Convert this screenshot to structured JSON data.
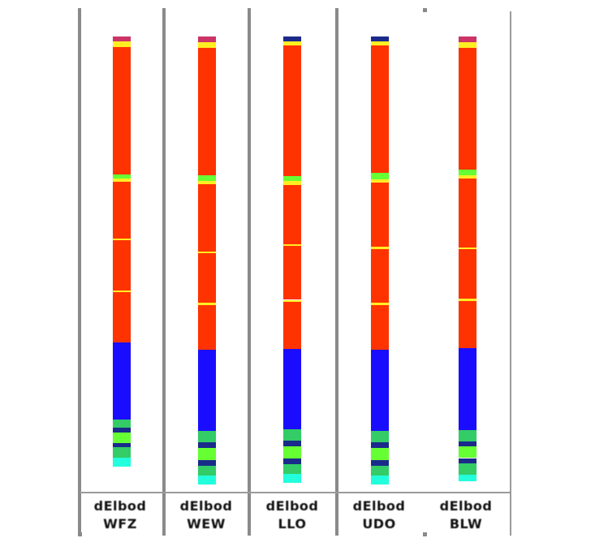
{
  "figure": {
    "colors": {
      "dominant": "#ff3300",
      "block": "#1a0dff",
      "transition": "#66ff33",
      "yellow": "#ffee22",
      "cyan": "#22ffdd",
      "green": "#33cc66",
      "navy": "#1a2a8a",
      "magenta": "#cc3366",
      "divider": "#8a8a8a"
    },
    "columns": [
      {
        "label_line1": "dElbod",
        "label_line2": "WFZ",
        "segments": [
          {
            "from": 0.0,
            "to": 0.012,
            "color": "magenta"
          },
          {
            "from": 0.012,
            "to": 0.024,
            "color": "yellow"
          },
          {
            "from": 0.024,
            "to": 0.32,
            "color": "dominant"
          },
          {
            "from": 0.32,
            "to": 0.33,
            "color": "transition"
          },
          {
            "from": 0.33,
            "to": 0.338,
            "color": "yellow"
          },
          {
            "from": 0.338,
            "to": 0.47,
            "color": "dominant"
          },
          {
            "from": 0.47,
            "to": 0.474,
            "color": "yellow"
          },
          {
            "from": 0.474,
            "to": 0.59,
            "color": "dominant"
          },
          {
            "from": 0.59,
            "to": 0.594,
            "color": "yellow"
          },
          {
            "from": 0.594,
            "to": 0.712,
            "color": "dominant"
          },
          {
            "from": 0.712,
            "to": 0.89,
            "color": "block"
          },
          {
            "from": 0.89,
            "to": 0.91,
            "color": "green"
          },
          {
            "from": 0.91,
            "to": 0.92,
            "color": "navy"
          },
          {
            "from": 0.92,
            "to": 0.945,
            "color": "transition"
          },
          {
            "from": 0.945,
            "to": 0.955,
            "color": "navy"
          },
          {
            "from": 0.955,
            "to": 0.98,
            "color": "green"
          },
          {
            "from": 0.98,
            "to": 1.0,
            "color": "cyan"
          }
        ]
      },
      {
        "label_line1": "dElbod",
        "label_line2": "WEW",
        "segments": [
          {
            "from": 0.0,
            "to": 0.012,
            "color": "magenta"
          },
          {
            "from": 0.012,
            "to": 0.026,
            "color": "yellow"
          },
          {
            "from": 0.026,
            "to": 0.31,
            "color": "dominant"
          },
          {
            "from": 0.31,
            "to": 0.322,
            "color": "transition"
          },
          {
            "from": 0.322,
            "to": 0.33,
            "color": "yellow"
          },
          {
            "from": 0.33,
            "to": 0.48,
            "color": "dominant"
          },
          {
            "from": 0.48,
            "to": 0.484,
            "color": "yellow"
          },
          {
            "from": 0.484,
            "to": 0.595,
            "color": "dominant"
          },
          {
            "from": 0.595,
            "to": 0.6,
            "color": "yellow"
          },
          {
            "from": 0.6,
            "to": 0.7,
            "color": "dominant"
          },
          {
            "from": 0.7,
            "to": 0.88,
            "color": "block"
          },
          {
            "from": 0.88,
            "to": 0.905,
            "color": "green"
          },
          {
            "from": 0.905,
            "to": 0.918,
            "color": "navy"
          },
          {
            "from": 0.918,
            "to": 0.945,
            "color": "transition"
          },
          {
            "from": 0.945,
            "to": 0.958,
            "color": "navy"
          },
          {
            "from": 0.958,
            "to": 0.98,
            "color": "green"
          },
          {
            "from": 0.98,
            "to": 1.0,
            "color": "cyan"
          }
        ]
      },
      {
        "label_line1": "dElbod",
        "label_line2": "LLO",
        "segments": [
          {
            "from": 0.0,
            "to": 0.01,
            "color": "navy"
          },
          {
            "from": 0.01,
            "to": 0.02,
            "color": "yellow"
          },
          {
            "from": 0.02,
            "to": 0.312,
            "color": "dominant"
          },
          {
            "from": 0.312,
            "to": 0.324,
            "color": "transition"
          },
          {
            "from": 0.324,
            "to": 0.332,
            "color": "yellow"
          },
          {
            "from": 0.332,
            "to": 0.465,
            "color": "dominant"
          },
          {
            "from": 0.465,
            "to": 0.469,
            "color": "yellow"
          },
          {
            "from": 0.469,
            "to": 0.59,
            "color": "dominant"
          },
          {
            "from": 0.59,
            "to": 0.594,
            "color": "yellow"
          },
          {
            "from": 0.594,
            "to": 0.7,
            "color": "dominant"
          },
          {
            "from": 0.7,
            "to": 0.88,
            "color": "block"
          },
          {
            "from": 0.88,
            "to": 0.905,
            "color": "green"
          },
          {
            "from": 0.905,
            "to": 0.918,
            "color": "navy"
          },
          {
            "from": 0.918,
            "to": 0.945,
            "color": "transition"
          },
          {
            "from": 0.945,
            "to": 0.958,
            "color": "navy"
          },
          {
            "from": 0.958,
            "to": 0.98,
            "color": "green"
          },
          {
            "from": 0.98,
            "to": 1.0,
            "color": "cyan"
          }
        ]
      },
      {
        "label_line1": "dElbod",
        "label_line2": "UDO",
        "segments": [
          {
            "from": 0.0,
            "to": 0.01,
            "color": "navy"
          },
          {
            "from": 0.01,
            "to": 0.02,
            "color": "yellow"
          },
          {
            "from": 0.02,
            "to": 0.305,
            "color": "dominant"
          },
          {
            "from": 0.305,
            "to": 0.318,
            "color": "transition"
          },
          {
            "from": 0.318,
            "to": 0.326,
            "color": "yellow"
          },
          {
            "from": 0.326,
            "to": 0.47,
            "color": "dominant"
          },
          {
            "from": 0.47,
            "to": 0.474,
            "color": "yellow"
          },
          {
            "from": 0.474,
            "to": 0.595,
            "color": "dominant"
          },
          {
            "from": 0.595,
            "to": 0.599,
            "color": "yellow"
          },
          {
            "from": 0.599,
            "to": 0.7,
            "color": "dominant"
          },
          {
            "from": 0.7,
            "to": 0.88,
            "color": "block"
          },
          {
            "from": 0.88,
            "to": 0.905,
            "color": "green"
          },
          {
            "from": 0.905,
            "to": 0.918,
            "color": "navy"
          },
          {
            "from": 0.918,
            "to": 0.945,
            "color": "transition"
          },
          {
            "from": 0.945,
            "to": 0.958,
            "color": "navy"
          },
          {
            "from": 0.958,
            "to": 0.98,
            "color": "green"
          },
          {
            "from": 0.98,
            "to": 1.0,
            "color": "cyan"
          }
        ]
      },
      {
        "label_line1": "dElbod",
        "label_line2": "BLW",
        "segments": [
          {
            "from": 0.0,
            "to": 0.012,
            "color": "magenta"
          },
          {
            "from": 0.012,
            "to": 0.026,
            "color": "yellow"
          },
          {
            "from": 0.026,
            "to": 0.3,
            "color": "dominant"
          },
          {
            "from": 0.3,
            "to": 0.312,
            "color": "transition"
          },
          {
            "from": 0.312,
            "to": 0.32,
            "color": "yellow"
          },
          {
            "from": 0.32,
            "to": 0.475,
            "color": "dominant"
          },
          {
            "from": 0.475,
            "to": 0.479,
            "color": "yellow"
          },
          {
            "from": 0.479,
            "to": 0.59,
            "color": "dominant"
          },
          {
            "from": 0.59,
            "to": 0.594,
            "color": "yellow"
          },
          {
            "from": 0.594,
            "to": 0.7,
            "color": "dominant"
          },
          {
            "from": 0.7,
            "to": 0.885,
            "color": "block"
          },
          {
            "from": 0.885,
            "to": 0.91,
            "color": "green"
          },
          {
            "from": 0.91,
            "to": 0.922,
            "color": "navy"
          },
          {
            "from": 0.922,
            "to": 0.948,
            "color": "transition"
          },
          {
            "from": 0.948,
            "to": 0.96,
            "color": "navy"
          },
          {
            "from": 0.96,
            "to": 0.985,
            "color": "green"
          },
          {
            "from": 0.985,
            "to": 1.0,
            "color": "cyan"
          }
        ]
      }
    ]
  }
}
